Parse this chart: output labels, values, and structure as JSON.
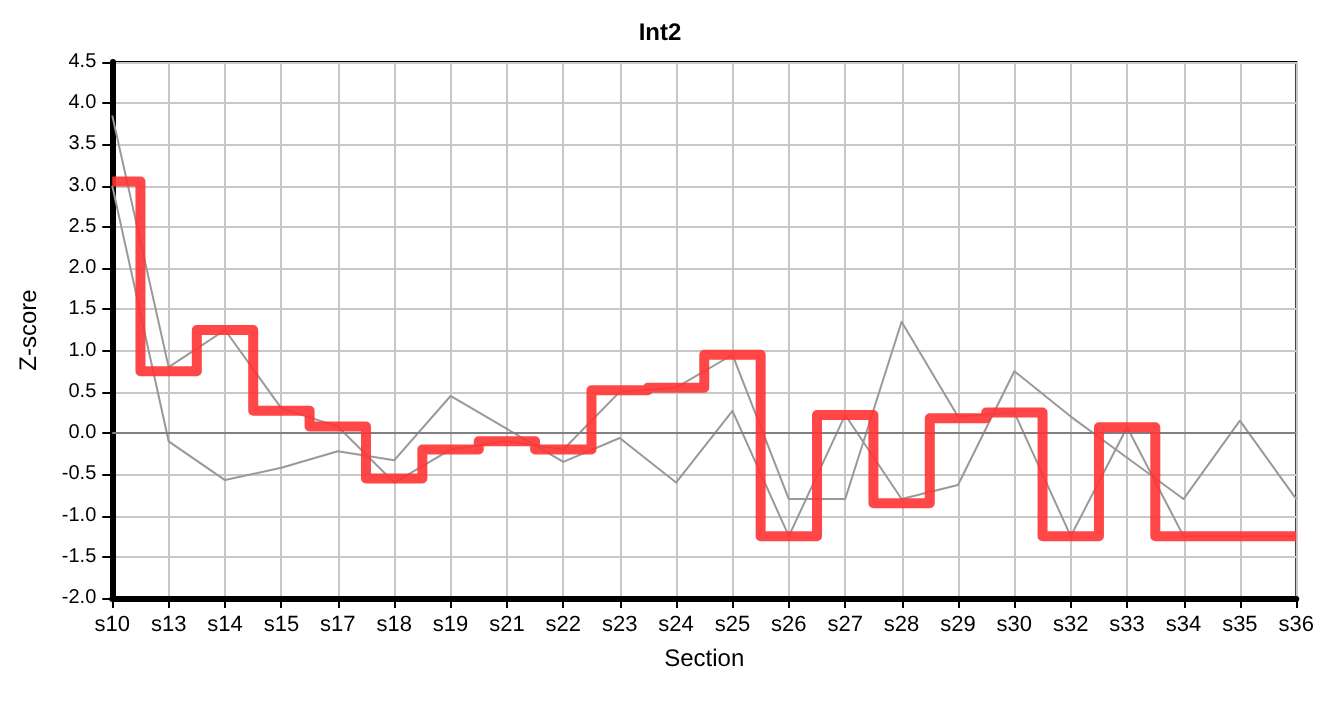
{
  "chart_data": {
    "type": "line",
    "title": "Int2",
    "xlabel": "Section",
    "ylabel": "Z-score",
    "categories": [
      "s10",
      "s13",
      "s14",
      "s15",
      "s17",
      "s18",
      "s19",
      "s21",
      "s22",
      "s23",
      "s24",
      "s25",
      "s26",
      "s27",
      "s28",
      "s29",
      "s30",
      "s32",
      "s33",
      "s34",
      "s35",
      "s36"
    ],
    "series": [
      {
        "color": "#999999",
        "values": [
          3.85,
          0.8,
          1.25,
          0.3,
          0.08,
          -0.6,
          -0.2,
          -0.1,
          -0.2,
          0.5,
          0.55,
          0.95,
          -0.8,
          -0.8,
          1.35,
          0.2,
          0.25,
          -1.25,
          0.07,
          -1.25,
          -1.25,
          -1.25
        ]
      },
      {
        "color": "#999999",
        "values": [
          3.0,
          -0.1,
          -0.57,
          -0.42,
          -0.22,
          -0.33,
          0.45,
          0.05,
          -0.35,
          -0.06,
          -0.6,
          0.27,
          -1.25,
          0.22,
          -0.8,
          -0.63,
          0.75,
          0.2,
          -0.3,
          -0.8,
          0.15,
          -0.8
        ]
      },
      {
        "type": "step",
        "color": "#ff3333",
        "values": [
          3.05,
          0.75,
          1.25,
          0.27,
          0.08,
          -0.55,
          -0.2,
          -0.1,
          -0.2,
          0.52,
          0.55,
          0.95,
          -1.25,
          0.22,
          -0.85,
          0.18,
          0.25,
          -1.25,
          0.07,
          -1.25,
          -1.25,
          -1.25
        ]
      }
    ],
    "ylim": [
      -2,
      4.5
    ],
    "yticks": [
      {
        "value": -2,
        "label": "-2.0"
      },
      -1.5,
      {
        "value": -1,
        "label": "-1.0"
      },
      -0.5,
      {
        "value": 0,
        "label": "0.0"
      },
      0.5,
      {
        "value": 1,
        "label": "1.0"
      },
      1.5,
      {
        "value": 2,
        "label": "2.0"
      },
      2.5,
      {
        "value": 3,
        "label": "3.0"
      },
      3.5,
      {
        "value": 4,
        "label": "4.0"
      },
      4.5
    ],
    "ref_lines": [
      {
        "axis": "y",
        "value": 0,
        "color": "#808080"
      }
    ],
    "grid": true,
    "marker": "none",
    "line_style": "solid"
  }
}
